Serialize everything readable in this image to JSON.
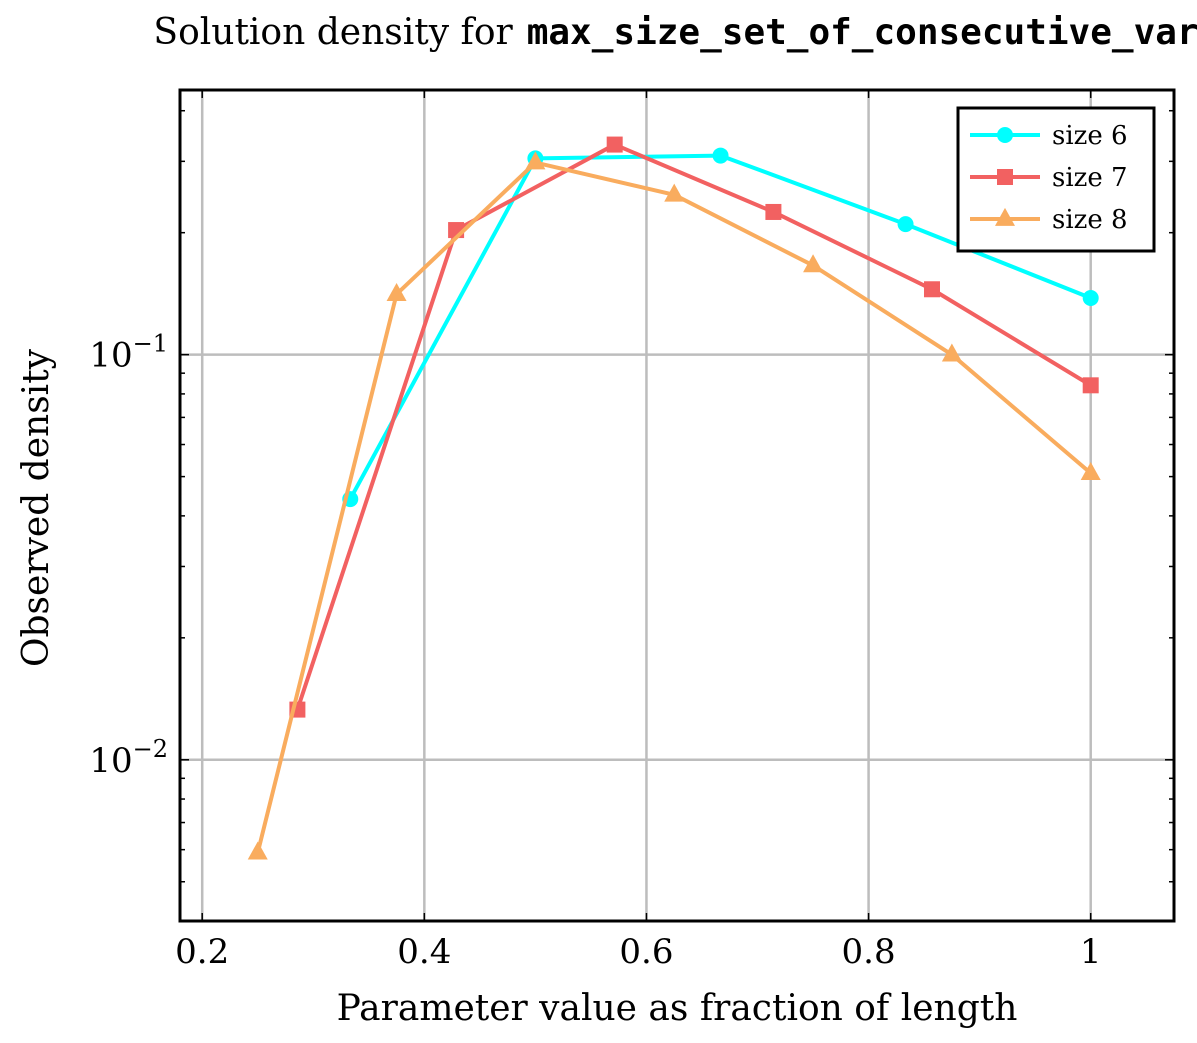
{
  "chart_data": {
    "type": "line",
    "title": {
      "prefix": "Solution density for",
      "code": "max_size_set_of_consecutive_var"
    },
    "xlabel": "Parameter value as fraction of length",
    "ylabel": "Observed density",
    "xlim": [
      0.18,
      1.075
    ],
    "ylim": [
      0.004,
      0.45
    ],
    "yscale": "log",
    "grid": true,
    "legend_position": "top-right",
    "x_ticks": [
      {
        "value": 0.2,
        "label": "0.2"
      },
      {
        "value": 0.4,
        "label": "0.4"
      },
      {
        "value": 0.6,
        "label": "0.6"
      },
      {
        "value": 0.8,
        "label": "0.8"
      },
      {
        "value": 1.0,
        "label": "1"
      }
    ],
    "y_ticks": [
      {
        "value": 0.01,
        "base": "10",
        "exp": "−2"
      },
      {
        "value": 0.1,
        "base": "10",
        "exp": "−1"
      }
    ],
    "series": [
      {
        "name": "size 6",
        "color": "#00ffff",
        "marker": "circle",
        "x": [
          0.3333,
          0.5,
          0.6667,
          0.8333,
          1.0
        ],
        "y": [
          0.044,
          0.305,
          0.31,
          0.21,
          0.138
        ]
      },
      {
        "name": "size 7",
        "color": "#f26161",
        "marker": "square",
        "x": [
          0.2857,
          0.4286,
          0.5714,
          0.7143,
          0.8571,
          1.0
        ],
        "y": [
          0.0133,
          0.203,
          0.33,
          0.225,
          0.145,
          0.084
        ]
      },
      {
        "name": "size 8",
        "color": "#f9ac5e",
        "marker": "triangle",
        "x": [
          0.25,
          0.375,
          0.5,
          0.625,
          0.75,
          0.875,
          1.0
        ],
        "y": [
          0.0059,
          0.141,
          0.298,
          0.248,
          0.166,
          0.1,
          0.051
        ]
      }
    ]
  }
}
